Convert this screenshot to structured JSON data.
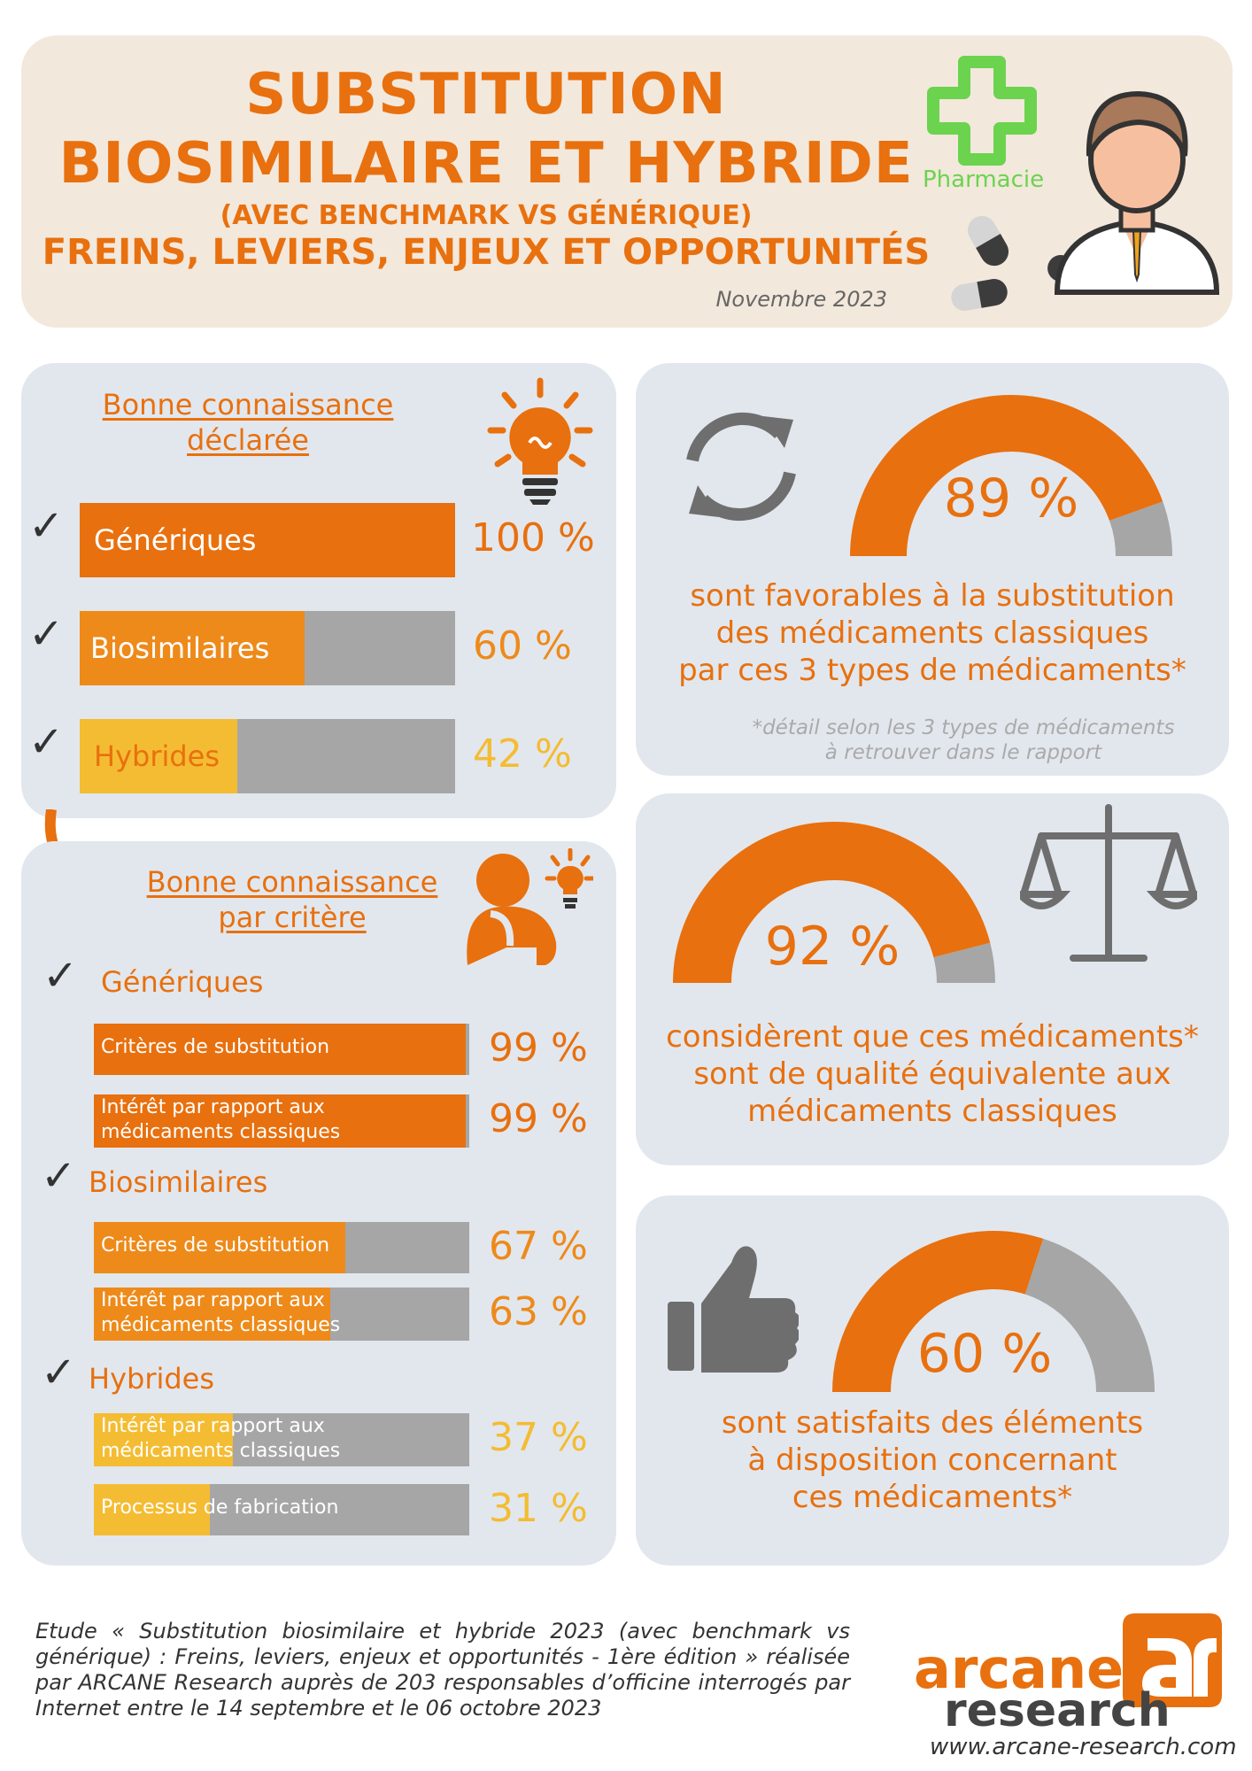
{
  "header": {
    "title_line1": "SUBSTITUTION",
    "title_line2": "BIOSIMILAIRE ET HYBRIDE",
    "title_line3": "(AVEC BENCHMARK VS GÉNÉRIQUE)",
    "title_line4": "FREINS, LEVIERS, ENJEUX ET OPPORTUNITÉS",
    "date": "Novembre 2023",
    "pharmacy_label": "Pharmacie"
  },
  "knowledge": {
    "heading_line1": "Bonne connaissance",
    "heading_line2": "déclarée",
    "check_glyph": "✓"
  },
  "criteria": {
    "heading_line1": "Bonne connaissance",
    "heading_line2": "par critère",
    "group_labels": [
      "Génériques",
      "Biosimilaires",
      "Hybrides"
    ]
  },
  "donuts": {
    "favorable": {
      "text_line1": "sont favorables à la substitution",
      "text_line2": "des médicaments classiques",
      "text_line3": "par ces 3 types de médicaments*",
      "footnote_line1": "*détail selon les 3 types de médicaments",
      "footnote_line2": "à retrouver dans le rapport"
    },
    "quality": {
      "text_line1": "considèrent que ces médicaments*",
      "text_line2": "sont de qualité équivalente aux",
      "text_line3": "médicaments classiques"
    },
    "satisfied": {
      "text_line1": "sont satisfaits des éléments",
      "text_line2": "à disposition concernant",
      "text_line3": "ces médicaments*"
    }
  },
  "footer": {
    "study": "Etude « Substitution biosimilaire et hybride 2023 (avec benchmark vs générique) : Freins, leviers, enjeux et opportunités - 1ère édition » réalisée par ARCANE Research auprès de 203 responsables d’officine interrogés par Internet entre le 14 septembre et le 06 octobre 2023",
    "logo_arcane": "arcane",
    "logo_research": "research",
    "url": "www.arcane-research.com"
  },
  "colors": {
    "orange": "#e8700e",
    "orange_mid": "#ee8a1a",
    "yellow": "#f4bc32",
    "gray": "#a6a6a6",
    "panel": "#e2e7ee",
    "header_bg": "#f3e8dc",
    "green": "#6bd34e"
  },
  "chart_data": [
    {
      "type": "bar",
      "name": "knowledge",
      "categories": [
        "Génériques",
        "Biosimilaires",
        "Hybrides"
      ],
      "values": [
        100,
        60,
        42
      ],
      "value_labels": [
        "100 %",
        "60 %",
        "42 %"
      ],
      "ylim": [
        0,
        100
      ]
    },
    {
      "type": "bar",
      "name": "criteria",
      "rows": [
        {
          "group": "Génériques",
          "label": "Critères de substitution",
          "value": 99,
          "value_label": "99 %"
        },
        {
          "group": "Génériques",
          "label_line1": "Intérêt par rapport aux",
          "label_line2": "médicaments classiques",
          "value": 99,
          "value_label": "99 %"
        },
        {
          "group": "Biosimilaires",
          "label": "Critères de substitution",
          "value": 67,
          "value_label": "67 %"
        },
        {
          "group": "Biosimilaires",
          "label_line1": "Intérêt par rapport aux",
          "label_line2": "médicaments classiques",
          "value": 63,
          "value_label": "63 %"
        },
        {
          "group": "Hybrides",
          "label_line1": "Intérêt par rapport aux",
          "label_line2": "médicaments classiques",
          "value": 37,
          "value_label": "37 %"
        },
        {
          "group": "Hybrides",
          "label": "Processus de fabrication",
          "value": 31,
          "value_label": "31 %"
        }
      ],
      "ylim": [
        0,
        100
      ]
    },
    {
      "type": "pie",
      "name": "favorable",
      "value": 89,
      "value_label": "89 %"
    },
    {
      "type": "pie",
      "name": "quality",
      "value": 92,
      "value_label": "92 %"
    },
    {
      "type": "pie",
      "name": "satisfied",
      "value": 60,
      "value_label": "60 %"
    }
  ]
}
